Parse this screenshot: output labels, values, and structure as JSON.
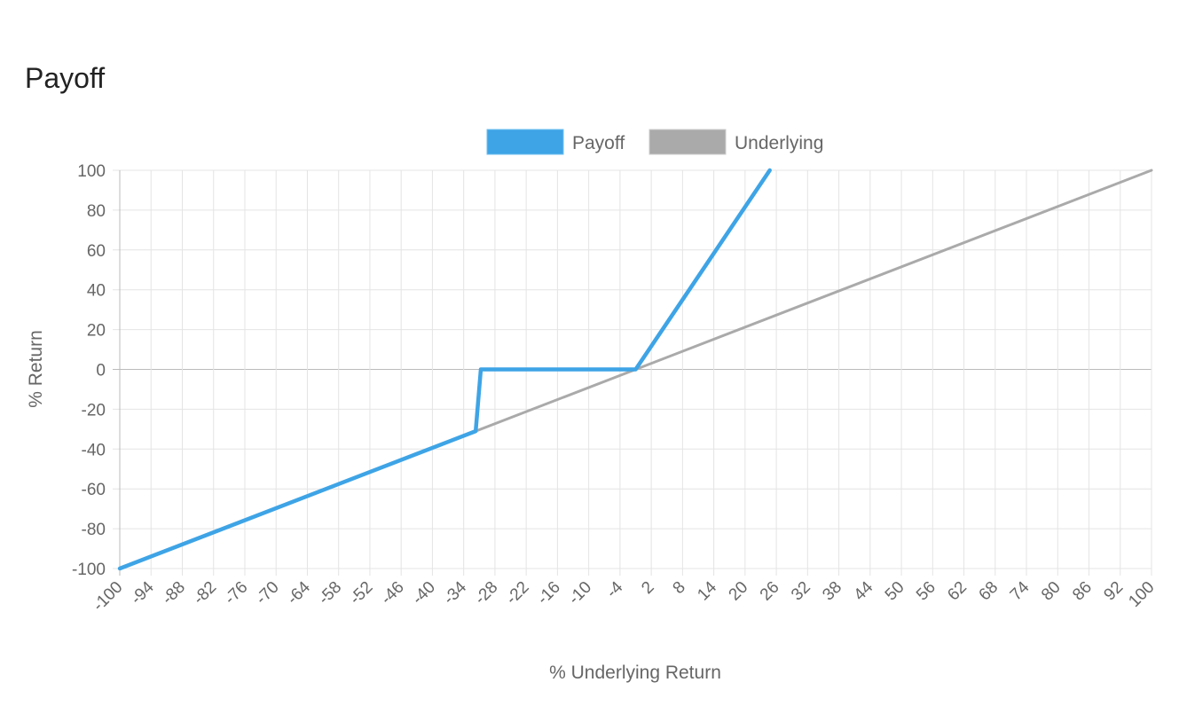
{
  "page": {
    "title": "Payoff"
  },
  "chart_data": {
    "type": "line",
    "title": "",
    "xlabel": "% Underlying Return",
    "ylabel": "% Return",
    "xlim": [
      -100,
      100
    ],
    "ylim": [
      -100,
      100
    ],
    "x_tick_labels": [
      -100,
      -94,
      -88,
      -82,
      -76,
      -70,
      -64,
      -58,
      -52,
      -46,
      -40,
      -34,
      -28,
      -22,
      -16,
      -10,
      -4,
      2,
      8,
      14,
      20,
      26,
      32,
      38,
      44,
      50,
      56,
      62,
      68,
      74,
      80,
      86,
      92,
      100
    ],
    "y_ticks": [
      100,
      80,
      60,
      40,
      20,
      0,
      -20,
      -40,
      -60,
      -80,
      -100
    ],
    "grid": true,
    "legend_position": "top",
    "series": [
      {
        "name": "Payoff",
        "color": "#3ea4e6",
        "points": [
          [
            -100,
            -100
          ],
          [
            -31,
            -31
          ],
          [
            -30,
            0
          ],
          [
            0,
            0
          ],
          [
            26,
            100
          ]
        ]
      },
      {
        "name": "Underlying",
        "color": "#aaaaaa",
        "points": [
          [
            -100,
            -100
          ],
          [
            100,
            100
          ]
        ]
      }
    ]
  }
}
